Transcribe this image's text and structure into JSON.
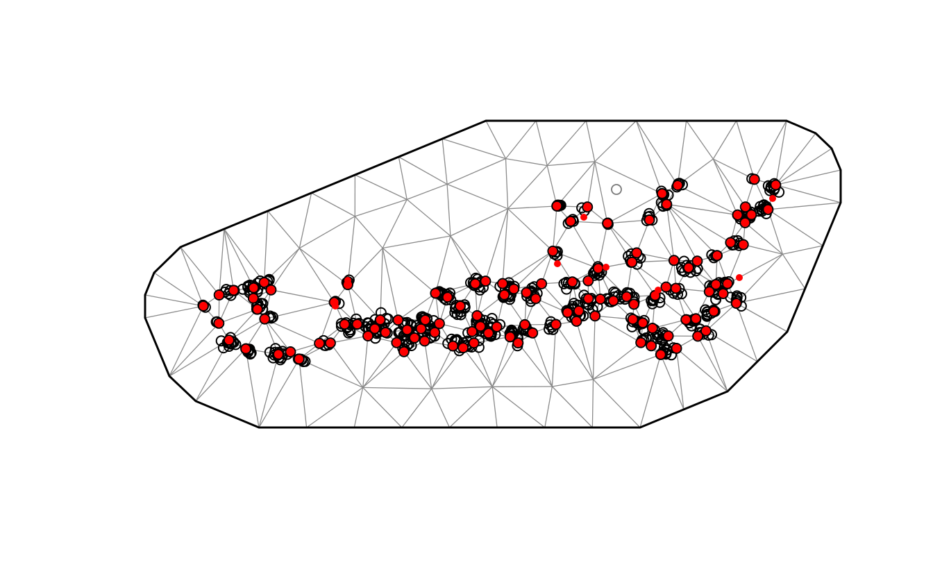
{
  "figure": {
    "kind": "mesh",
    "boundary_color": "#000000",
    "edge_color": "#8a8a8a",
    "observation_marker": "open-circle",
    "observation_color": "#000000",
    "mesh_node_marker": "filled-dot",
    "mesh_node_color": "#ff0000"
  }
}
